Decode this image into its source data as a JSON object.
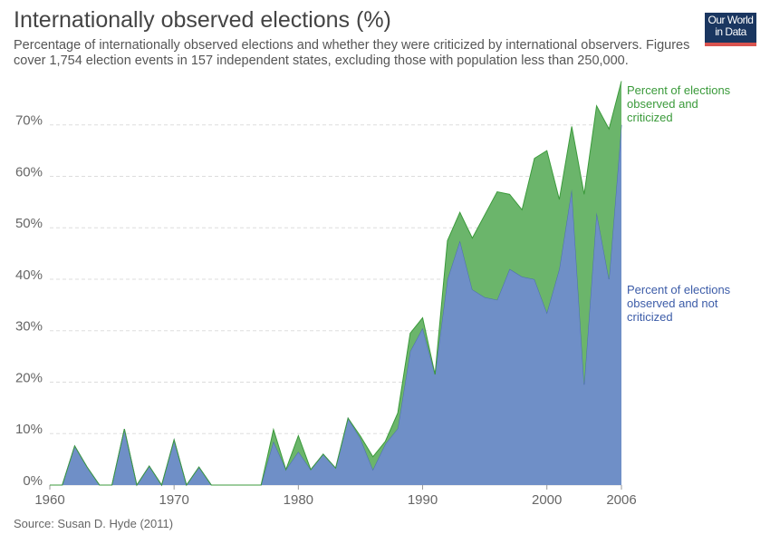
{
  "chart_data": {
    "type": "stacked_area",
    "title": "Internationally observed elections (%)",
    "subtitle": [
      "Percentage of internationally observed elections and whether they were criticized by international observers. Figures",
      "cover 1,754 election events in 157 independent states, excluding those with population less than 250,000."
    ],
    "logo": [
      "Our World",
      "in Data"
    ],
    "source": "Source: Susan D. Hyde (2011)",
    "x": [
      1960,
      1961,
      1962,
      1963,
      1964,
      1965,
      1966,
      1967,
      1968,
      1969,
      1970,
      1971,
      1972,
      1973,
      1974,
      1975,
      1976,
      1977,
      1978,
      1979,
      1980,
      1981,
      1982,
      1983,
      1984,
      1985,
      1986,
      1987,
      1988,
      1989,
      1990,
      1991,
      1992,
      1993,
      1994,
      1995,
      1996,
      1997,
      1998,
      1999,
      2000,
      2001,
      2002,
      2003,
      2004,
      2005,
      2006
    ],
    "series": [
      {
        "name": "Percent of elections observed and not criticized",
        "color": "#6f8fc7",
        "stroke": "#4a6bb0",
        "label_color": "#3c5ca8",
        "values": [
          0,
          0,
          7.6,
          3.5,
          0,
          0,
          10.9,
          0,
          3.7,
          0,
          8.8,
          0,
          3.5,
          0,
          0,
          0,
          0,
          0,
          8.5,
          3,
          6.5,
          3,
          6,
          3.3,
          13,
          9,
          3,
          8,
          11,
          26,
          30.5,
          21.5,
          40,
          47.5,
          38,
          36.5,
          36,
          42,
          40.5,
          40,
          33.5,
          42,
          57.5,
          19.5,
          53,
          40,
          70
        ]
      },
      {
        "name": "Percent of elections observed and criticized",
        "color": "#6bb56b",
        "stroke": "#3b9a3b",
        "label_color": "#3a9a3a",
        "values": [
          0,
          0,
          0,
          0,
          0,
          0,
          0,
          0,
          0,
          0,
          0,
          0,
          0,
          0,
          0,
          0,
          0,
          0,
          2.3,
          0,
          3.1,
          0,
          0,
          0,
          0,
          0.5,
          2.5,
          0.5,
          3,
          3.5,
          2,
          0,
          7.5,
          5.5,
          10,
          16,
          21,
          14.5,
          13,
          23.5,
          31.5,
          13.5,
          12.2,
          37,
          20.7,
          29.2,
          8.5
        ]
      }
    ],
    "xlim": [
      1960,
      2006
    ],
    "xticks": [
      1960,
      1970,
      1980,
      1990,
      2000,
      2006
    ],
    "ylim": [
      0,
      80
    ],
    "yticks": [
      {
        "value": 0,
        "label": "0%"
      },
      {
        "value": 10,
        "label": "10%"
      },
      {
        "value": 20,
        "label": "20%"
      },
      {
        "value": 30,
        "label": "30%"
      },
      {
        "value": 40,
        "label": "40%"
      },
      {
        "value": 50,
        "label": "50%"
      },
      {
        "value": 60,
        "label": "60%"
      },
      {
        "value": 70,
        "label": "70%"
      }
    ],
    "grid": true
  }
}
